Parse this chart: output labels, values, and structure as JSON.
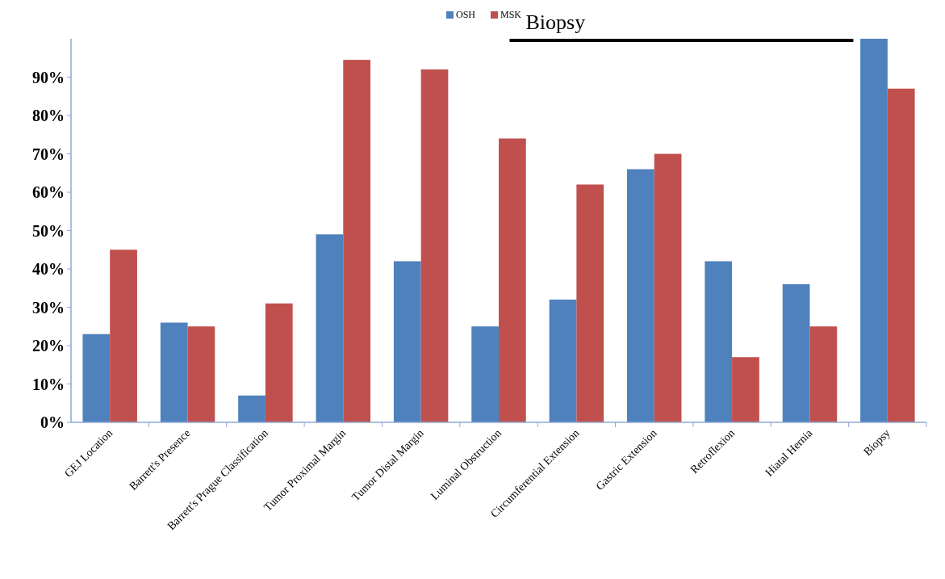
{
  "chart_data": {
    "type": "bar",
    "categories": [
      "GEJ Location",
      "Barrett's Presence",
      "Barrett's Prague Classification",
      "Tumor Proximal Margin",
      "Tumor Distal Margin",
      "Luminal Obstruction",
      "Circumferential Extension",
      "Gastric Extension",
      "Retroflexion",
      "Hiatal Hernia",
      "Biopsy"
    ],
    "series": [
      {
        "name": "OSH",
        "color": "#4f81bd",
        "values": [
          23,
          26,
          7,
          49,
          42,
          25,
          32,
          66,
          42,
          36,
          100
        ]
      },
      {
        "name": "MSK",
        "color": "#c0504d",
        "values": [
          45,
          25,
          31,
          94.5,
          92,
          74,
          62,
          70,
          17,
          25,
          87
        ]
      }
    ],
    "ylim": [
      0,
      100
    ],
    "yticks": [
      {
        "value": 0,
        "label": "0%"
      },
      {
        "value": 10,
        "label": "10%"
      },
      {
        "value": 20,
        "label": "20%"
      },
      {
        "value": 30,
        "label": "30%"
      },
      {
        "value": 40,
        "label": "40%"
      },
      {
        "value": 50,
        "label": "50%"
      },
      {
        "value": 60,
        "label": "60%"
      },
      {
        "value": 70,
        "label": "70%"
      },
      {
        "value": 80,
        "label": "80%"
      },
      {
        "value": 90,
        "label": "90%"
      }
    ],
    "annotations": [
      "Biopsy"
    ],
    "legend": "top",
    "grid": false
  }
}
